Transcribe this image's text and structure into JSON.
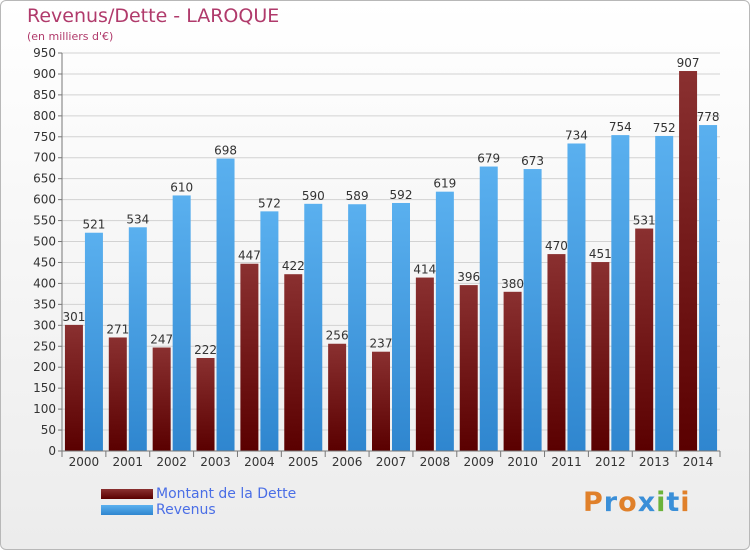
{
  "title": "Revenus/Dette - LAROQUE",
  "subtitle": "(en milliers d'€)",
  "legend": {
    "dette": "Montant de la Dette",
    "revenus": "Revenus"
  },
  "logo_letters": [
    "P",
    "r",
    "o",
    "x",
    "i",
    "t",
    "i"
  ],
  "colors": {
    "dette": "#6b1010",
    "revenus": "#3b8fd8",
    "title": "#b03a6b",
    "legend_text": "#4a6ee6"
  },
  "chart_data": {
    "type": "bar",
    "categories": [
      "2000",
      "2001",
      "2002",
      "2003",
      "2004",
      "2005",
      "2006",
      "2007",
      "2008",
      "2009",
      "2010",
      "2011",
      "2012",
      "2013",
      "2014"
    ],
    "series": [
      {
        "name": "Montant de la Dette",
        "values": [
          301,
          271,
          247,
          222,
          447,
          422,
          256,
          237,
          414,
          396,
          380,
          470,
          451,
          531,
          907
        ]
      },
      {
        "name": "Revenus",
        "values": [
          521,
          534,
          610,
          698,
          572,
          590,
          589,
          592,
          619,
          679,
          673,
          734,
          754,
          752,
          778
        ]
      }
    ],
    "ylim": [
      0,
      950
    ],
    "yticks": [
      0,
      50,
      100,
      150,
      200,
      250,
      300,
      350,
      400,
      450,
      500,
      550,
      600,
      650,
      700,
      750,
      800,
      850,
      900,
      950
    ],
    "grid": true
  }
}
